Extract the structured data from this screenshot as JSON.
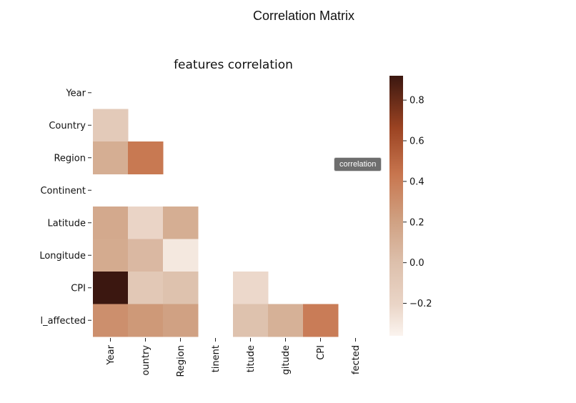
{
  "page": {
    "title": "Correlation Matrix"
  },
  "tooltip": {
    "text": "correlation"
  },
  "chart_data": {
    "type": "heatmap",
    "title": "features correlation",
    "mask": "upper-triangle",
    "colormap": "copper_r",
    "y_labels": [
      "Year",
      "Country",
      "Region",
      "Continent",
      "Latitude",
      "Longitude",
      "CPI",
      "l_affected"
    ],
    "x_labels": [
      "Year",
      "ountry",
      "Region",
      "tinent",
      "titude",
      "gitude",
      "CPI",
      "fected"
    ],
    "values": [
      [
        null,
        null,
        null,
        null,
        null,
        null,
        null,
        null
      ],
      [
        -0.1,
        null,
        null,
        null,
        null,
        null,
        null,
        null
      ],
      [
        0.12,
        0.42,
        null,
        null,
        null,
        null,
        null,
        null
      ],
      [
        null,
        null,
        null,
        null,
        null,
        null,
        null,
        null
      ],
      [
        0.15,
        -0.2,
        0.12,
        null,
        null,
        null,
        null,
        null
      ],
      [
        0.14,
        0.05,
        -0.3,
        null,
        null,
        null,
        null,
        null
      ],
      [
        0.92,
        -0.08,
        -0.02,
        null,
        -0.22,
        null,
        null,
        null
      ],
      [
        0.3,
        0.25,
        0.2,
        null,
        -0.02,
        0.1,
        0.4,
        null
      ]
    ],
    "colorbar": {
      "min": -0.36,
      "max": 0.92,
      "ticks": [
        0.8,
        0.6,
        0.4,
        0.2,
        0.0,
        -0.2
      ],
      "tick_labels": [
        "0.8",
        "0.6",
        "0.4",
        "0.2",
        "0.0",
        "−0.2"
      ]
    }
  }
}
